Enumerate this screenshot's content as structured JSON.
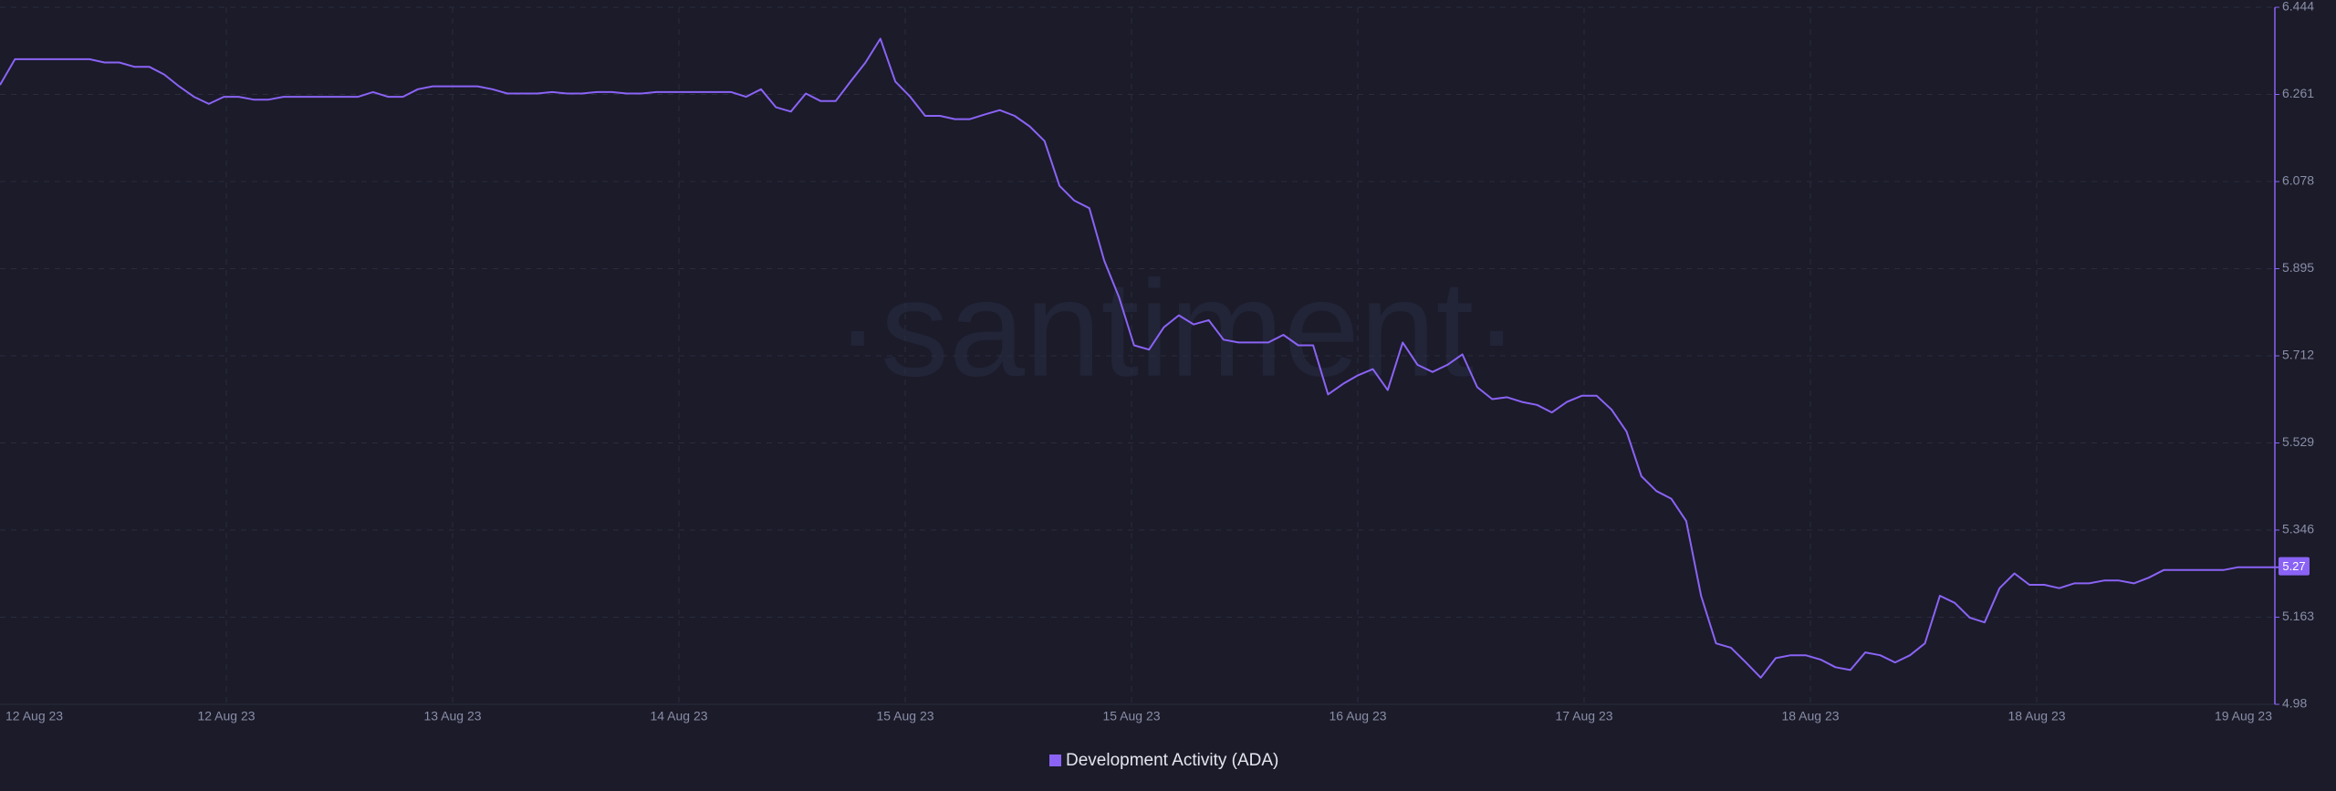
{
  "chart_data": {
    "type": "line",
    "watermark": "·santiment·",
    "x_labels": [
      "12 Aug 23",
      "12 Aug 23",
      "13 Aug 23",
      "14 Aug 23",
      "15 Aug 23",
      "15 Aug 23",
      "16 Aug 23",
      "17 Aug 23",
      "18 Aug 23",
      "18 Aug 23",
      "19 Aug 23"
    ],
    "ylim": [
      4.98,
      6.444
    ],
    "yticks": [
      4.98,
      5.163,
      5.346,
      5.529,
      5.712,
      5.895,
      6.078,
      6.261,
      6.444
    ],
    "grid": true,
    "current_value": 5.27,
    "series": [
      {
        "name": "Development Activity (ADA)",
        "color": "#8a63f5",
        "values": [
          6.281,
          6.335,
          6.335,
          6.335,
          6.335,
          6.335,
          6.335,
          6.328,
          6.328,
          6.319,
          6.319,
          6.303,
          6.278,
          6.256,
          6.241,
          6.256,
          6.256,
          6.25,
          6.25,
          6.256,
          6.256,
          6.256,
          6.256,
          6.256,
          6.256,
          6.266,
          6.256,
          6.256,
          6.272,
          6.278,
          6.278,
          6.278,
          6.278,
          6.272,
          6.263,
          6.263,
          6.263,
          6.266,
          6.263,
          6.263,
          6.266,
          6.266,
          6.263,
          6.263,
          6.266,
          6.266,
          6.266,
          6.266,
          6.266,
          6.266,
          6.256,
          6.272,
          6.234,
          6.225,
          6.263,
          6.247,
          6.247,
          6.288,
          6.328,
          6.378,
          6.288,
          6.256,
          6.216,
          6.216,
          6.209,
          6.209,
          6.219,
          6.228,
          6.216,
          6.194,
          6.163,
          6.069,
          6.038,
          6.022,
          5.912,
          5.834,
          5.734,
          5.725,
          5.772,
          5.797,
          5.778,
          5.787,
          5.746,
          5.74,
          5.74,
          5.74,
          5.756,
          5.734,
          5.734,
          5.631,
          5.653,
          5.671,
          5.684,
          5.64,
          5.74,
          5.693,
          5.678,
          5.693,
          5.715,
          5.646,
          5.621,
          5.625,
          5.615,
          5.609,
          5.593,
          5.615,
          5.628,
          5.628,
          5.599,
          5.553,
          5.459,
          5.428,
          5.412,
          5.365,
          5.208,
          5.108,
          5.099,
          5.068,
          5.036,
          5.077,
          5.083,
          5.083,
          5.074,
          5.058,
          5.052,
          5.089,
          5.083,
          5.068,
          5.083,
          5.108,
          5.208,
          5.193,
          5.162,
          5.152,
          5.224,
          5.255,
          5.231,
          5.231,
          5.224,
          5.234,
          5.234,
          5.24,
          5.24,
          5.234,
          5.246,
          5.262,
          5.262,
          5.262,
          5.262,
          5.262,
          5.268,
          5.268,
          5.268,
          5.268
        ]
      }
    ]
  }
}
